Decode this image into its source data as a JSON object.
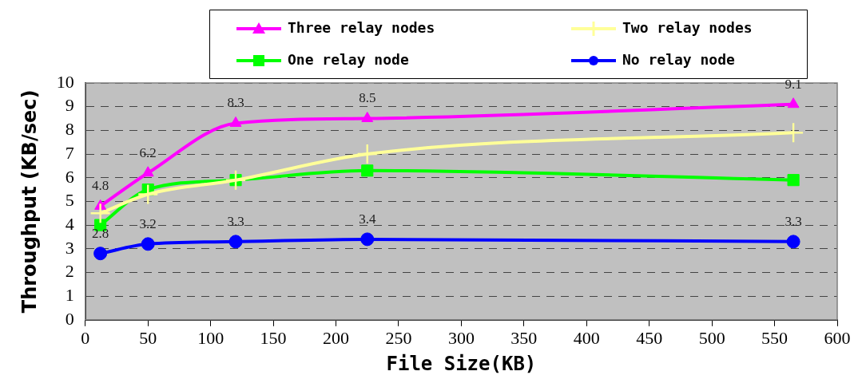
{
  "chart_data": {
    "type": "line",
    "xlabel": "File Size(KB)",
    "ylabel": "Throughput (KB/sec)",
    "x": [
      12,
      50,
      120,
      225,
      565
    ],
    "series": [
      {
        "name": "Three relay nodes",
        "color": "#ff00ff",
        "marker": "triangle",
        "values": [
          4.8,
          6.2,
          8.3,
          8.5,
          9.1
        ],
        "value_labels": [
          "4.8",
          "6.2",
          "8.3",
          "8.5",
          "9.1"
        ]
      },
      {
        "name": "Two relay nodes",
        "color": "#ffff99",
        "marker": "cross",
        "values": [
          4.5,
          5.3,
          5.9,
          7.0,
          7.9
        ]
      },
      {
        "name": "One relay node",
        "color": "#00ff00",
        "marker": "square",
        "values": [
          4.0,
          5.5,
          5.9,
          6.3,
          5.9
        ]
      },
      {
        "name": "No relay node",
        "color": "#0000ff",
        "marker": "circle",
        "values": [
          2.8,
          3.2,
          3.3,
          3.4,
          3.3
        ],
        "value_labels": [
          "2.8",
          "3.2",
          "3.3",
          "3.4",
          "3.3"
        ]
      }
    ],
    "xlim": [
      0,
      600
    ],
    "xticks": [
      0,
      50,
      100,
      150,
      200,
      250,
      300,
      350,
      400,
      450,
      500,
      550,
      600
    ],
    "ylim": [
      0,
      10
    ],
    "yticks": [
      0,
      1,
      2,
      3,
      4,
      5,
      6,
      7,
      8,
      9,
      10
    ],
    "grid": "y",
    "legend": "top",
    "line_style": "solid"
  }
}
